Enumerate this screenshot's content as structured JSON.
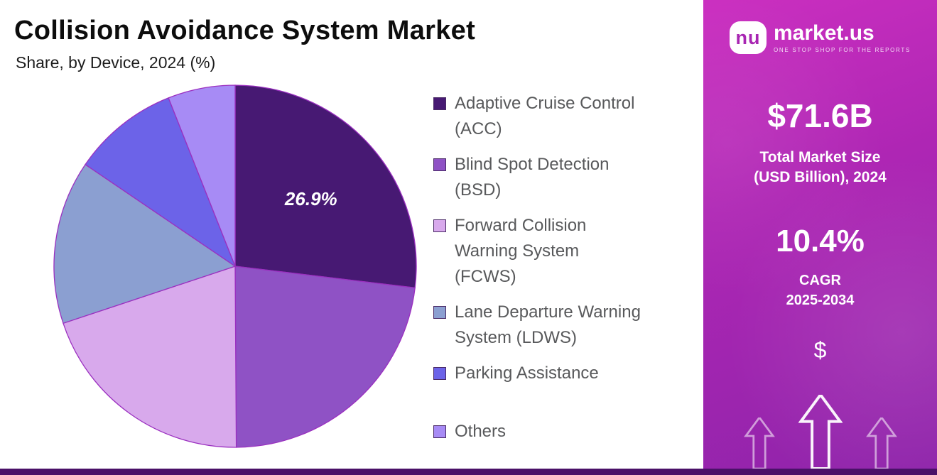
{
  "header": {
    "title": "Collision Avoidance System Market",
    "subtitle": "Share, by Device, 2024 (%)"
  },
  "chart_data": {
    "type": "pie",
    "title": "Collision Avoidance System Market Share, by Device, 2024 (%)",
    "unit": "%",
    "start_angle_deg": -90,
    "direction": "clockwise",
    "legend_position": "right",
    "slices": [
      {
        "label": "Adaptive Cruise Control (ACC)",
        "value": 26.9,
        "color": "#471973",
        "data_label": "26.9%",
        "legend_gap_before": false
      },
      {
        "label": "Blind Spot Detection (BSD)",
        "value": 23.0,
        "color": "#8F52C5",
        "data_label": "",
        "legend_gap_before": false
      },
      {
        "label": "Forward Collision Warning System (FCWS)",
        "value": 20.0,
        "color": "#D8A9EC",
        "data_label": "",
        "legend_gap_before": false
      },
      {
        "label": "Lane Departure Warning System (LDWS)",
        "value": 14.6,
        "color": "#8B9FD1",
        "data_label": "",
        "legend_gap_before": false
      },
      {
        "label": "Parking Assistance",
        "value": 9.5,
        "color": "#6C63E8",
        "data_label": "",
        "legend_gap_before": false
      },
      {
        "label": "Others",
        "value": 6.0,
        "color": "#A78BF5",
        "data_label": "",
        "legend_gap_before": true
      }
    ]
  },
  "sidebar": {
    "logo_icon": "marketus-cloud-icon",
    "logo_icon_text": "nu",
    "logo_text": "market.us",
    "logo_tagline": "ONE STOP SHOP FOR THE REPORTS",
    "market_size_value": "$71.6B",
    "market_size_label_line1": "Total Market Size",
    "market_size_label_line2": "(USD Billion), 2024",
    "cagr_value": "10.4%",
    "cagr_label_line1": "CAGR",
    "cagr_label_line2": "2025-2034",
    "dollar_symbol": "$",
    "arrow_icon": "up-arrow-icon"
  },
  "colors": {
    "pie_stroke": "#9B30C0",
    "bottom_strip": "#4A1168",
    "panel_gradient_start": "#CB2FC0",
    "panel_gradient_end": "#8E24AA",
    "legend_text": "#58595B"
  }
}
